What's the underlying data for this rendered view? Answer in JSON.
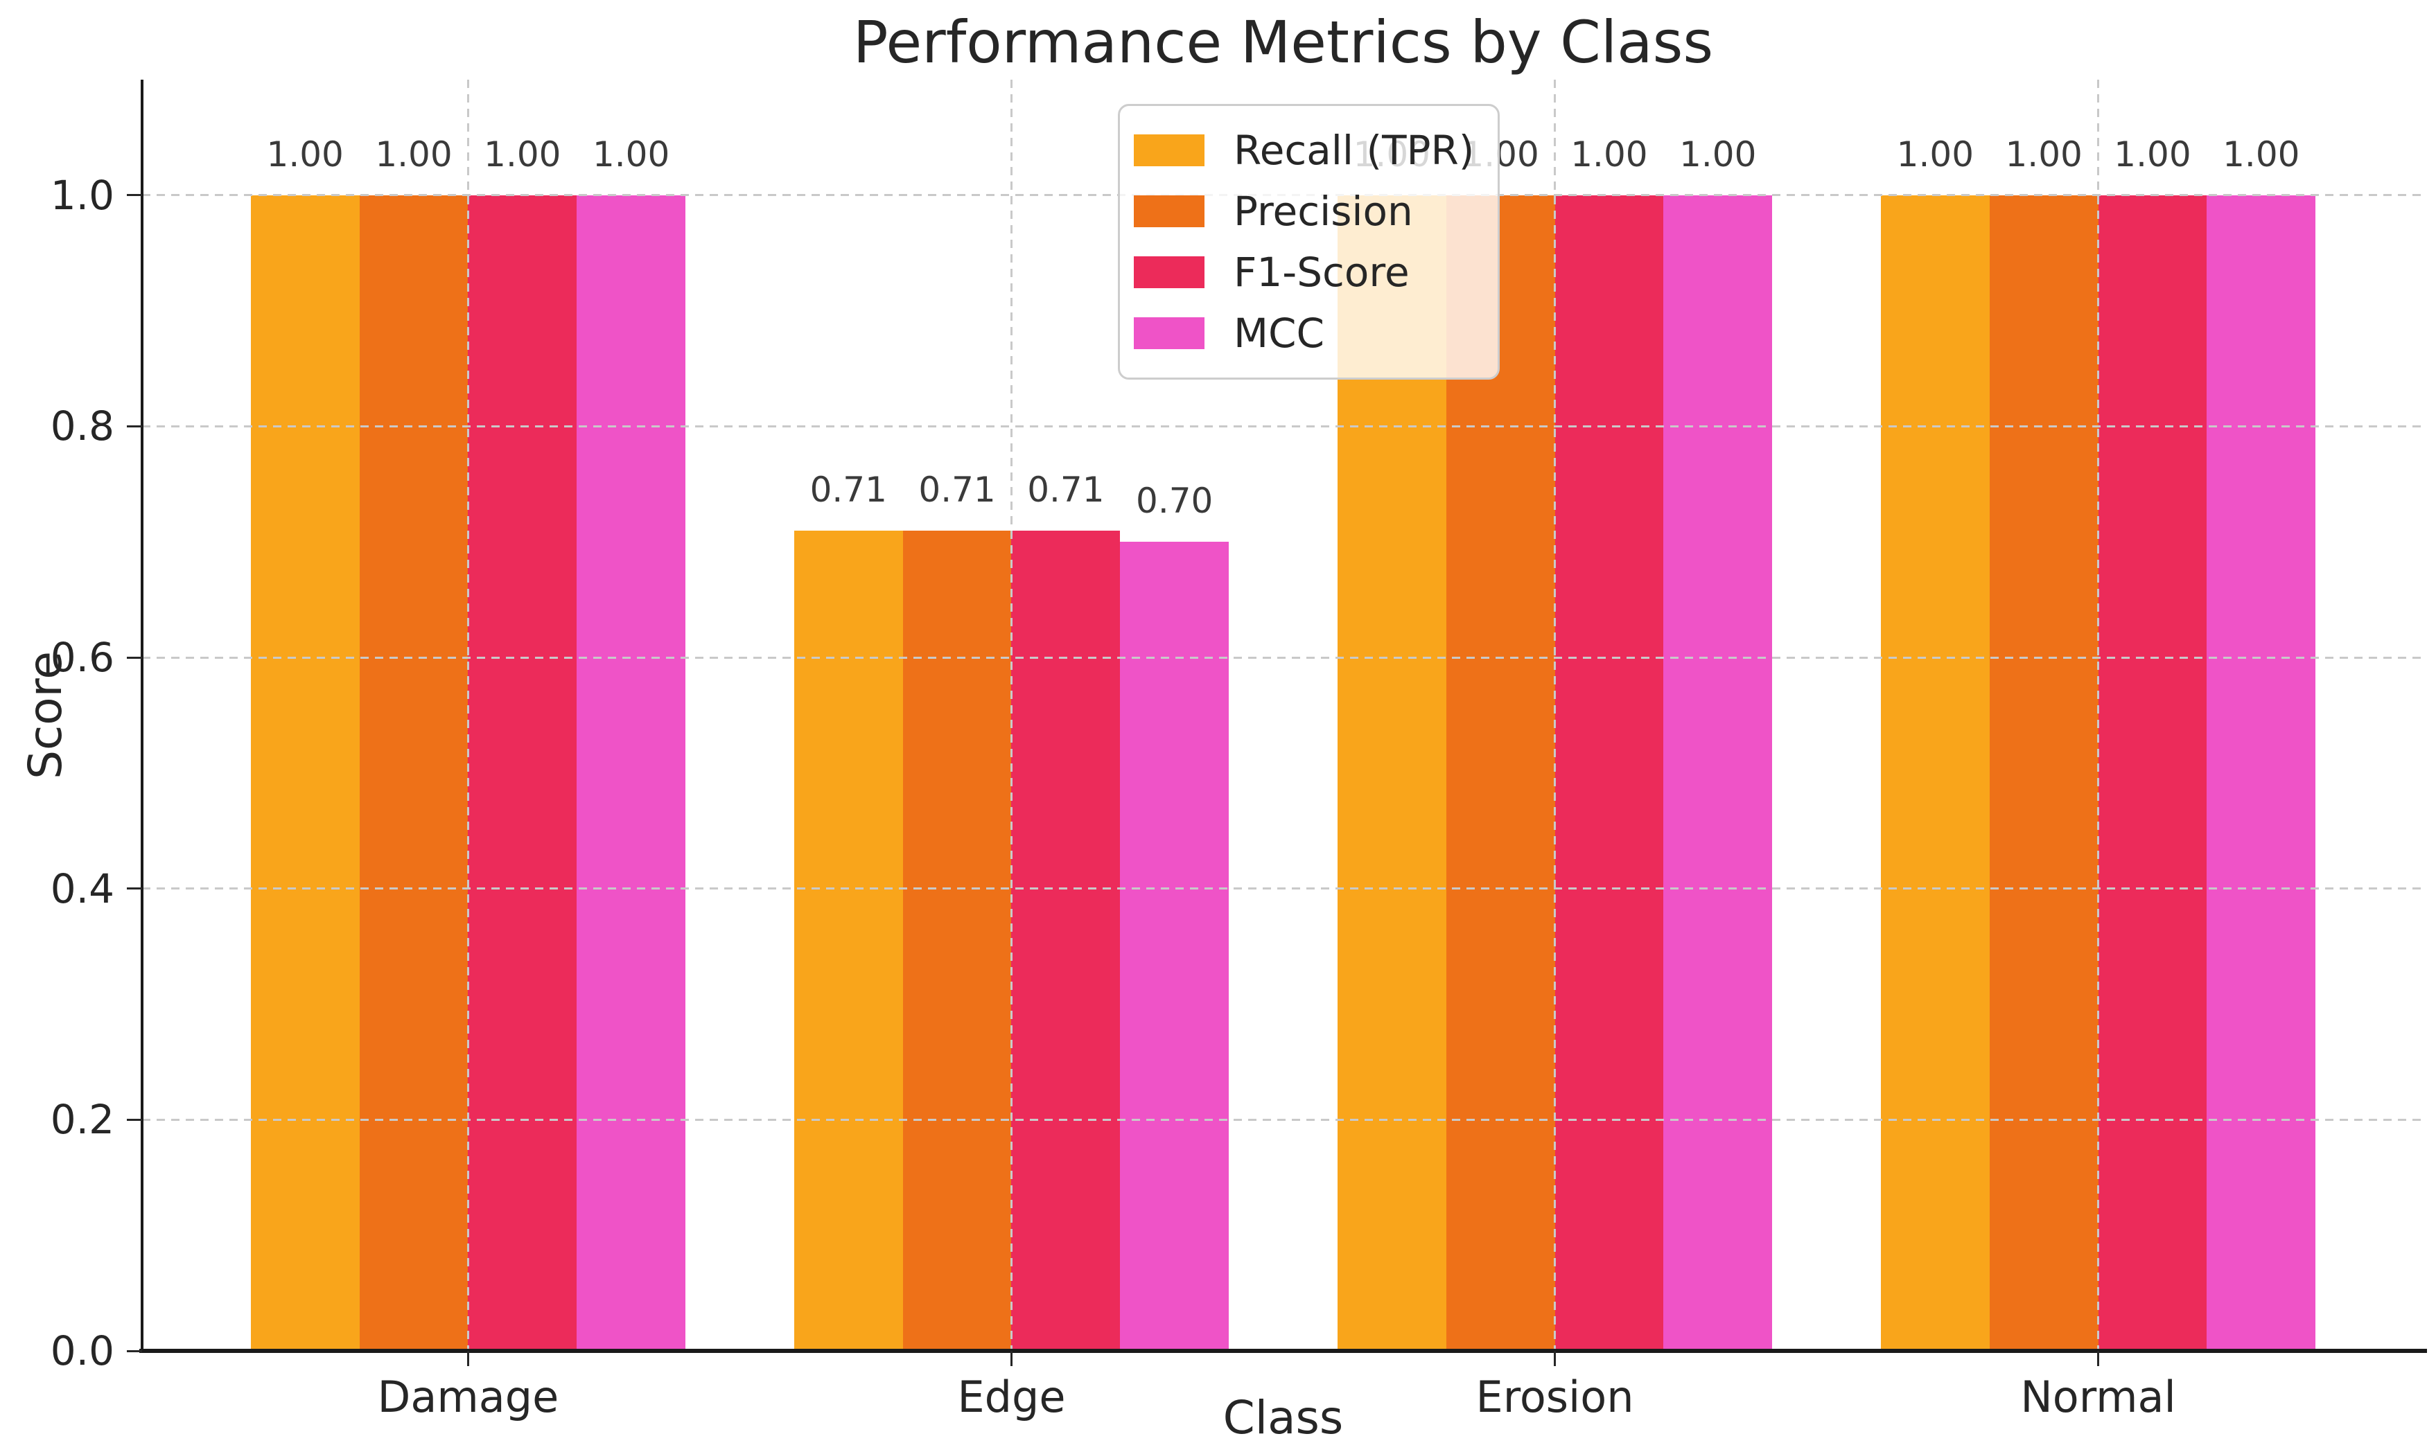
{
  "chart_data": {
    "type": "bar",
    "title": "Performance Metrics by Class",
    "xlabel": "Class",
    "ylabel": "Score",
    "categories": [
      "Damage",
      "Edge",
      "Erosion",
      "Normal"
    ],
    "series": [
      {
        "name": "Recall (TPR)",
        "color": "#F9A51B",
        "values": [
          1.0,
          0.71,
          1.0,
          1.0
        ],
        "labels": [
          "1.00",
          "0.71",
          "1.00",
          "1.00"
        ]
      },
      {
        "name": "Precision",
        "color": "#EE7118",
        "values": [
          1.0,
          0.71,
          1.0,
          1.0
        ],
        "labels": [
          "1.00",
          "0.71",
          "1.00",
          "1.00"
        ]
      },
      {
        "name": "F1-Score",
        "color": "#EC2B5A",
        "values": [
          1.0,
          0.71,
          1.0,
          1.0
        ],
        "labels": [
          "1.00",
          "0.71",
          "1.00",
          "1.00"
        ]
      },
      {
        "name": "MCC",
        "color": "#EF53C7",
        "values": [
          1.0,
          0.7,
          1.0,
          1.0
        ],
        "labels": [
          "1.00",
          "0.70",
          "1.00",
          "1.00"
        ]
      }
    ],
    "ylim": [
      0,
      1.1
    ],
    "yticks": [
      {
        "label": "0.0",
        "value": 0.0
      },
      {
        "label": "0.2",
        "value": 0.2
      },
      {
        "label": "0.4",
        "value": 0.4
      },
      {
        "label": "0.6",
        "value": 0.6
      },
      {
        "label": "0.8",
        "value": 0.8
      },
      {
        "label": "1.0",
        "value": 1.0
      }
    ],
    "grid": true,
    "grid_style": "dashed",
    "grid_over_bars": true,
    "legend_position": "upper center",
    "value_label_format": "2dp"
  },
  "colors": {
    "background": "#ffffff",
    "axis": "#1a1a1a",
    "tick_text": "#262626",
    "value_text": "#3a3a3a",
    "grid": "#c9c9c9",
    "legend_border": "#cdcdcd",
    "legend_background": "rgba(255,255,255,0.8)"
  }
}
